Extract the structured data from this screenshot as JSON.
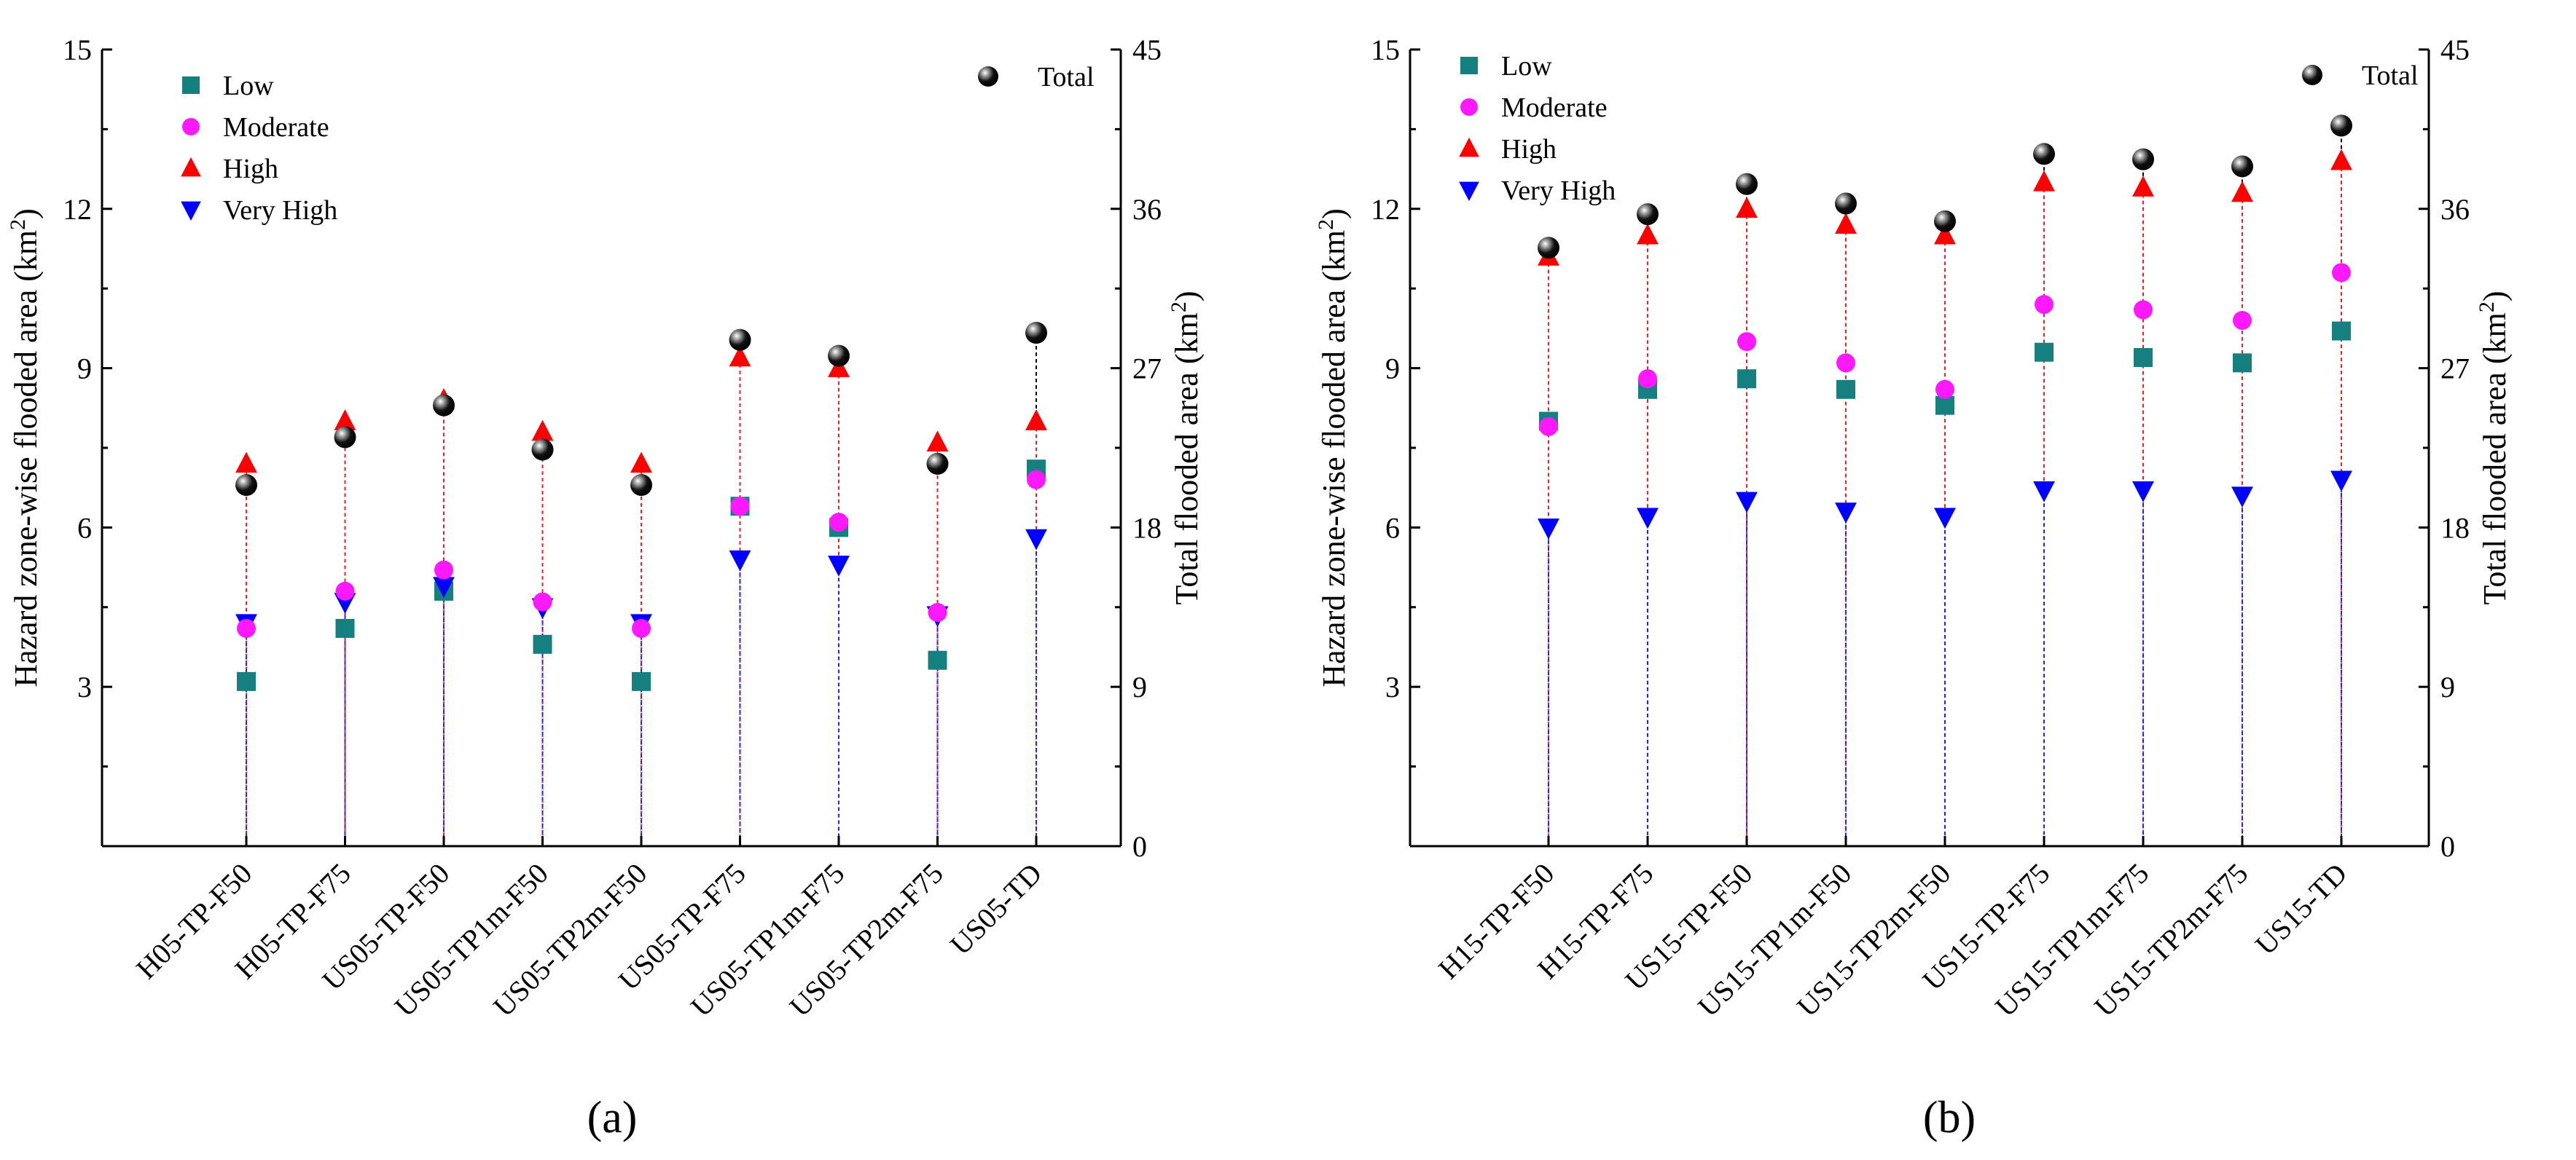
{
  "chart_data": [
    {
      "type": "scatter",
      "panel_label": "(a)",
      "categories": [
        "H05-TP-F50",
        "H05-TP-F75",
        "US05-TP-F50",
        "US05-TP1m-F50",
        "US05-TP2m-F50",
        "US05-TP-F75",
        "US05-TP1m-F75",
        "US05-TP2m-F75",
        "US05-TD"
      ],
      "ylabel": "Hazard zone-wise flooded area (km",
      "ylabel_sup": "2",
      "ylabel_close": ")",
      "y2label": "Total flooded area (km",
      "y2label_sup": "2",
      "y2label_close": ")",
      "ylim": [
        0,
        15
      ],
      "y2lim": [
        0,
        45
      ],
      "yticks": [
        "3",
        "6",
        "9",
        "12",
        "15"
      ],
      "y2ticks": [
        "0",
        "9",
        "18",
        "27",
        "36",
        "45"
      ],
      "series": [
        {
          "name": "Low",
          "marker": "square",
          "color": "#168080",
          "values": [
            3.1,
            4.1,
            4.8,
            3.8,
            3.1,
            6.4,
            6.0,
            3.5,
            7.1
          ]
        },
        {
          "name": "Moderate",
          "marker": "circle",
          "color": "#ff19ff",
          "values": [
            4.1,
            4.8,
            5.2,
            4.6,
            4.1,
            6.4,
            6.1,
            4.4,
            6.9
          ]
        },
        {
          "name": "High",
          "marker": "triangle-up",
          "color": "#ff0000",
          "values": [
            7.2,
            8.0,
            8.4,
            7.8,
            7.2,
            9.2,
            9.0,
            7.6,
            8.0
          ]
        },
        {
          "name": "Very High",
          "marker": "triangle-down",
          "color": "#0000ff",
          "values": [
            4.2,
            4.6,
            4.9,
            4.5,
            4.2,
            5.4,
            5.3,
            4.35,
            5.8
          ]
        },
        {
          "name": "Total",
          "marker": "sphere",
          "color": "#000000",
          "axis": "right",
          "values": [
            20.4,
            23.1,
            24.9,
            22.4,
            20.4,
            28.6,
            27.7,
            21.6,
            29.0
          ]
        }
      ]
    },
    {
      "type": "scatter",
      "panel_label": "(b)",
      "categories": [
        "H15-TP-F50",
        "H15-TP-F75",
        "US15-TP-F50",
        "US15-TP1m-F50",
        "US15-TP2m-F50",
        "US15-TP-F75",
        "US15-TP1m-F75",
        "US15-TP2m-F75",
        "US15-TD"
      ],
      "ylabel": "Hazard zone-wise flooded area (km",
      "ylabel_sup": "2",
      "ylabel_close": ")",
      "y2label": "Total flooded area (km",
      "y2label_sup": "2",
      "y2label_close": ")",
      "ylim": [
        0,
        15
      ],
      "y2lim": [
        0,
        45
      ],
      "yticks": [
        "3",
        "6",
        "9",
        "12",
        "15"
      ],
      "y2ticks": [
        "0",
        "9",
        "18",
        "27",
        "36",
        "45"
      ],
      "series": [
        {
          "name": "Low",
          "marker": "square",
          "color": "#168080",
          "values": [
            8.0,
            8.6,
            8.8,
            8.6,
            8.3,
            9.3,
            9.2,
            9.1,
            9.7
          ]
        },
        {
          "name": "Moderate",
          "marker": "circle",
          "color": "#ff19ff",
          "values": [
            7.9,
            8.8,
            9.5,
            9.1,
            8.6,
            10.2,
            10.1,
            9.9,
            10.8
          ]
        },
        {
          "name": "High",
          "marker": "triangle-up",
          "color": "#ff0000",
          "values": [
            11.1,
            11.5,
            12.0,
            11.7,
            11.5,
            12.5,
            12.4,
            12.3,
            12.9
          ]
        },
        {
          "name": "Very High",
          "marker": "triangle-down",
          "color": "#0000ff",
          "values": [
            6.0,
            6.2,
            6.5,
            6.3,
            6.2,
            6.7,
            6.7,
            6.6,
            6.9
          ]
        },
        {
          "name": "Total",
          "marker": "sphere",
          "color": "#000000",
          "axis": "right",
          "values": [
            33.8,
            35.7,
            37.4,
            36.3,
            35.3,
            39.1,
            38.8,
            38.4,
            40.7
          ]
        }
      ]
    }
  ]
}
